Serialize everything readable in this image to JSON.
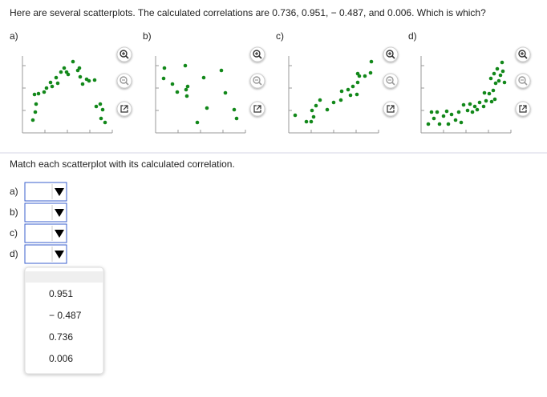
{
  "question": "Here are several scatterplots. The calculated correlations are 0.736, 0.951, − 0.487, and 0.006. Which is which?",
  "plots": [
    {
      "label": "a)",
      "points": {
        "x": [
          6,
          9,
          10,
          8,
          13,
          20,
          23,
          28,
          30,
          35,
          37,
          41,
          45,
          48,
          50,
          56,
          62,
          64,
          65,
          68,
          73,
          76,
          83,
          85,
          90,
          93,
          91,
          96
        ],
        "y": [
          10,
          20,
          30,
          42,
          43,
          45,
          50,
          57,
          52,
          63,
          56,
          70,
          75,
          70,
          67,
          83,
          72,
          75,
          64,
          55,
          61,
          59,
          60,
          27,
          30,
          23,
          12,
          7
        ]
      }
    },
    {
      "label": "b)",
      "points": {
        "x": [
          4,
          3,
          14,
          20,
          30,
          31,
          33,
          32,
          45,
          53,
          57,
          75,
          80,
          91,
          94
        ],
        "y": [
          75,
          62,
          55,
          45,
          78,
          48,
          52,
          40,
          7,
          63,
          25,
          72,
          44,
          23,
          12
        ]
      }
    },
    {
      "label": "c)",
      "points": {
        "x": [
          1,
          15,
          21,
          24,
          22,
          27,
          32,
          41,
          49,
          59,
          58,
          67,
          70,
          73,
          79,
          81,
          79,
          88,
          95,
          96,
          78
        ],
        "y": [
          16,
          8,
          8,
          14,
          22,
          28,
          35,
          23,
          32,
          46,
          35,
          48,
          41,
          52,
          57,
          65,
          68,
          65,
          69,
          83,
          42
        ]
      }
    },
    {
      "label": "d)",
      "points": {
        "x": [
          2,
          6,
          9,
          13,
          16,
          21,
          25,
          27,
          31,
          36,
          40,
          43,
          46,
          51,
          54,
          57,
          60,
          66,
          63,
          71,
          74,
          72,
          78,
          81,
          85,
          83,
          80,
          84,
          88,
          92,
          95,
          90,
          86,
          94,
          97
        ],
        "y": [
          5,
          20,
          12,
          20,
          5,
          15,
          21,
          5,
          17,
          10,
          20,
          7,
          29,
          22,
          30,
          20,
          27,
          32,
          23,
          27,
          34,
          44,
          43,
          33,
          36,
          47,
          62,
          68,
          74,
          66,
          71,
          59,
          56,
          82,
          57
        ]
      }
    }
  ],
  "match": {
    "prompt": "Match each scatterplot with its calculated correlation.",
    "rows": [
      "a)",
      "b)",
      "c)",
      "d)"
    ]
  },
  "dropdown": {
    "options": [
      "0.951",
      "− 0.487",
      "0.736",
      "0.006"
    ]
  }
}
